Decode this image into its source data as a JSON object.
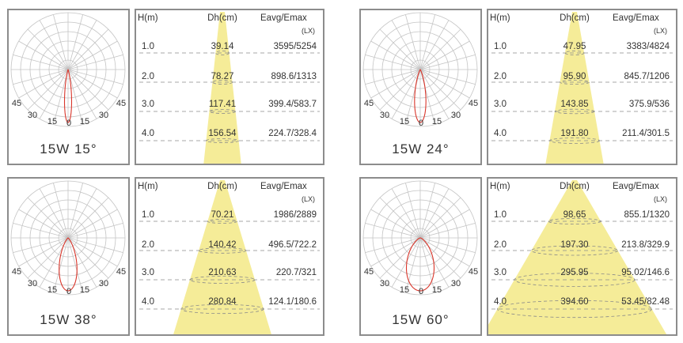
{
  "headers": {
    "height": "H(m)",
    "diameter": "Dh(cm)",
    "illuminance": "Eavg/Emax",
    "unit": "(LX)"
  },
  "polar_angle_labels": [
    "45",
    "30",
    "15",
    "0",
    "15",
    "30",
    "45"
  ],
  "colors": {
    "beam": "#f5ec98",
    "curve": "#d9352a",
    "grid": "#c4c4c4",
    "frame": "#8c8c8c",
    "dash": "#8a8a8a"
  },
  "panels": [
    {
      "caption": "15W 15°",
      "beam_angle": 15,
      "rows": [
        {
          "h": "1.0",
          "dh": "39.14",
          "e": "3595/5254"
        },
        {
          "h": "2.0",
          "dh": "78.27",
          "e": "898.6/1313"
        },
        {
          "h": "3.0",
          "dh": "117.41",
          "e": "399.4/583.7"
        },
        {
          "h": "4.0",
          "dh": "156.54",
          "e": "224.7/328.4"
        }
      ]
    },
    {
      "caption": "15W 24°",
      "beam_angle": 24,
      "rows": [
        {
          "h": "1.0",
          "dh": "47.95",
          "e": "3383/4824"
        },
        {
          "h": "2.0",
          "dh": "95.90",
          "e": "845.7/1206"
        },
        {
          "h": "3.0",
          "dh": "143.85",
          "e": "375.9/536"
        },
        {
          "h": "4.0",
          "dh": "191.80",
          "e": "211.4/301.5"
        }
      ]
    },
    {
      "caption": "15W 38°",
      "beam_angle": 38,
      "rows": [
        {
          "h": "1.0",
          "dh": "70.21",
          "e": "1986/2889"
        },
        {
          "h": "2.0",
          "dh": "140.42",
          "e": "496.5/722.2"
        },
        {
          "h": "3.0",
          "dh": "210.63",
          "e": "220.7/321"
        },
        {
          "h": "4.0",
          "dh": "280.84",
          "e": "124.1/180.6"
        }
      ]
    },
    {
      "caption": "15W 60°",
      "beam_angle": 60,
      "rows": [
        {
          "h": "1.0",
          "dh": "98.65",
          "e": "855.1/1320"
        },
        {
          "h": "2.0",
          "dh": "197.30",
          "e": "213.8/329.9"
        },
        {
          "h": "3.0",
          "dh": "295.95",
          "e": "95.02/146.6"
        },
        {
          "h": "4.0",
          "dh": "394.60",
          "e": "53.45/82.48"
        }
      ]
    }
  ]
}
